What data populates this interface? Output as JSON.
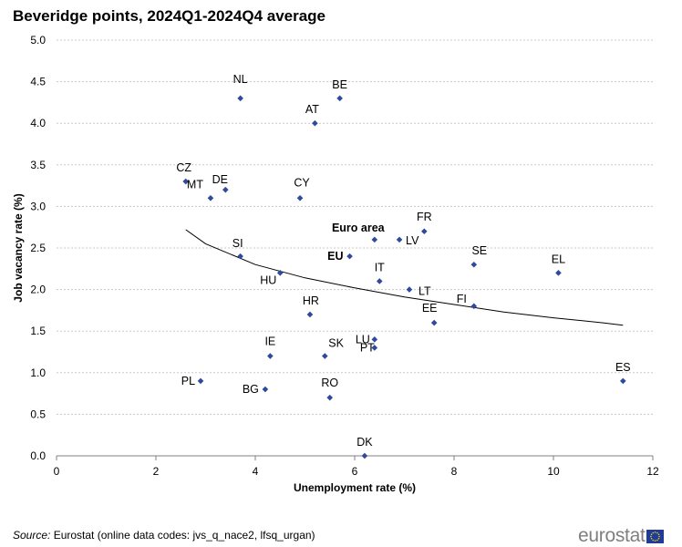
{
  "title": "Beveridge points, 2024Q1-2024Q4  average",
  "source": {
    "label": "Source:",
    "text": " Eurostat (online data codes: jvs_q_nace2, lfsq_urgan)"
  },
  "logo": {
    "text": "eurostat",
    "flag_color": "#1f3c99",
    "star_color": "#ffd700"
  },
  "colors": {
    "marker": "#2e4a9e",
    "grid": "#c8c8c8",
    "axis": "#808080",
    "trend": "#000000"
  },
  "chart_data": {
    "type": "scatter",
    "title": "Beveridge points, 2024Q1-2024Q4  average",
    "xlabel": "Unemployment rate (%)",
    "ylabel": "Job vacancy rate (%)",
    "xlim": [
      0,
      12
    ],
    "ylim": [
      0,
      5
    ],
    "xticks": [
      "0",
      "2",
      "4",
      "6",
      "8",
      "10",
      "12"
    ],
    "yticks": [
      "0.0",
      "0.5",
      "1.0",
      "1.5",
      "2.0",
      "2.5",
      "3.0",
      "3.5",
      "4.0",
      "4.5",
      "5.0"
    ],
    "grid": "horizontal dotted",
    "points": [
      {
        "label": "NL",
        "x": 3.7,
        "y": 4.3
      },
      {
        "label": "BE",
        "x": 5.7,
        "y": 4.3
      },
      {
        "label": "AT",
        "x": 5.2,
        "y": 4.0
      },
      {
        "label": "CZ",
        "x": 2.6,
        "y": 3.3
      },
      {
        "label": "DE",
        "x": 3.4,
        "y": 3.2
      },
      {
        "label": "MT",
        "x": 3.1,
        "y": 3.1
      },
      {
        "label": "CY",
        "x": 4.9,
        "y": 3.1
      },
      {
        "label": "Euro area",
        "x": 6.4,
        "y": 2.6,
        "bold": true
      },
      {
        "label": "FR",
        "x": 7.4,
        "y": 2.7
      },
      {
        "label": "LV",
        "x": 6.9,
        "y": 2.6
      },
      {
        "label": "EU",
        "x": 5.9,
        "y": 2.4,
        "bold": true
      },
      {
        "label": "SI",
        "x": 3.7,
        "y": 2.4
      },
      {
        "label": "HU",
        "x": 4.5,
        "y": 2.2
      },
      {
        "label": "IT",
        "x": 6.5,
        "y": 2.1
      },
      {
        "label": "SE",
        "x": 8.4,
        "y": 2.3
      },
      {
        "label": "EL",
        "x": 10.1,
        "y": 2.2
      },
      {
        "label": "LT",
        "x": 7.1,
        "y": 2.0
      },
      {
        "label": "FI",
        "x": 8.4,
        "y": 1.8
      },
      {
        "label": "HR",
        "x": 5.1,
        "y": 1.7
      },
      {
        "label": "EE",
        "x": 7.6,
        "y": 1.6
      },
      {
        "label": "LU",
        "x": 6.4,
        "y": 1.4
      },
      {
        "label": "PT",
        "x": 6.4,
        "y": 1.3
      },
      {
        "label": "IE",
        "x": 4.3,
        "y": 1.2
      },
      {
        "label": "SK",
        "x": 5.4,
        "y": 1.2
      },
      {
        "label": "PL",
        "x": 2.9,
        "y": 0.9
      },
      {
        "label": "ES",
        "x": 11.4,
        "y": 0.9
      },
      {
        "label": "BG",
        "x": 4.2,
        "y": 0.8
      },
      {
        "label": "RO",
        "x": 5.5,
        "y": 0.7
      },
      {
        "label": "DK",
        "x": 6.2,
        "y": 0.0
      }
    ],
    "trendline": {
      "type": "power",
      "points": [
        [
          2.6,
          2.72
        ],
        [
          3,
          2.55
        ],
        [
          4,
          2.3
        ],
        [
          5,
          2.14
        ],
        [
          6,
          2.02
        ],
        [
          7,
          1.91
        ],
        [
          8,
          1.82
        ],
        [
          9,
          1.73
        ],
        [
          10,
          1.66
        ],
        [
          11,
          1.6
        ],
        [
          11.4,
          1.57
        ]
      ]
    }
  }
}
